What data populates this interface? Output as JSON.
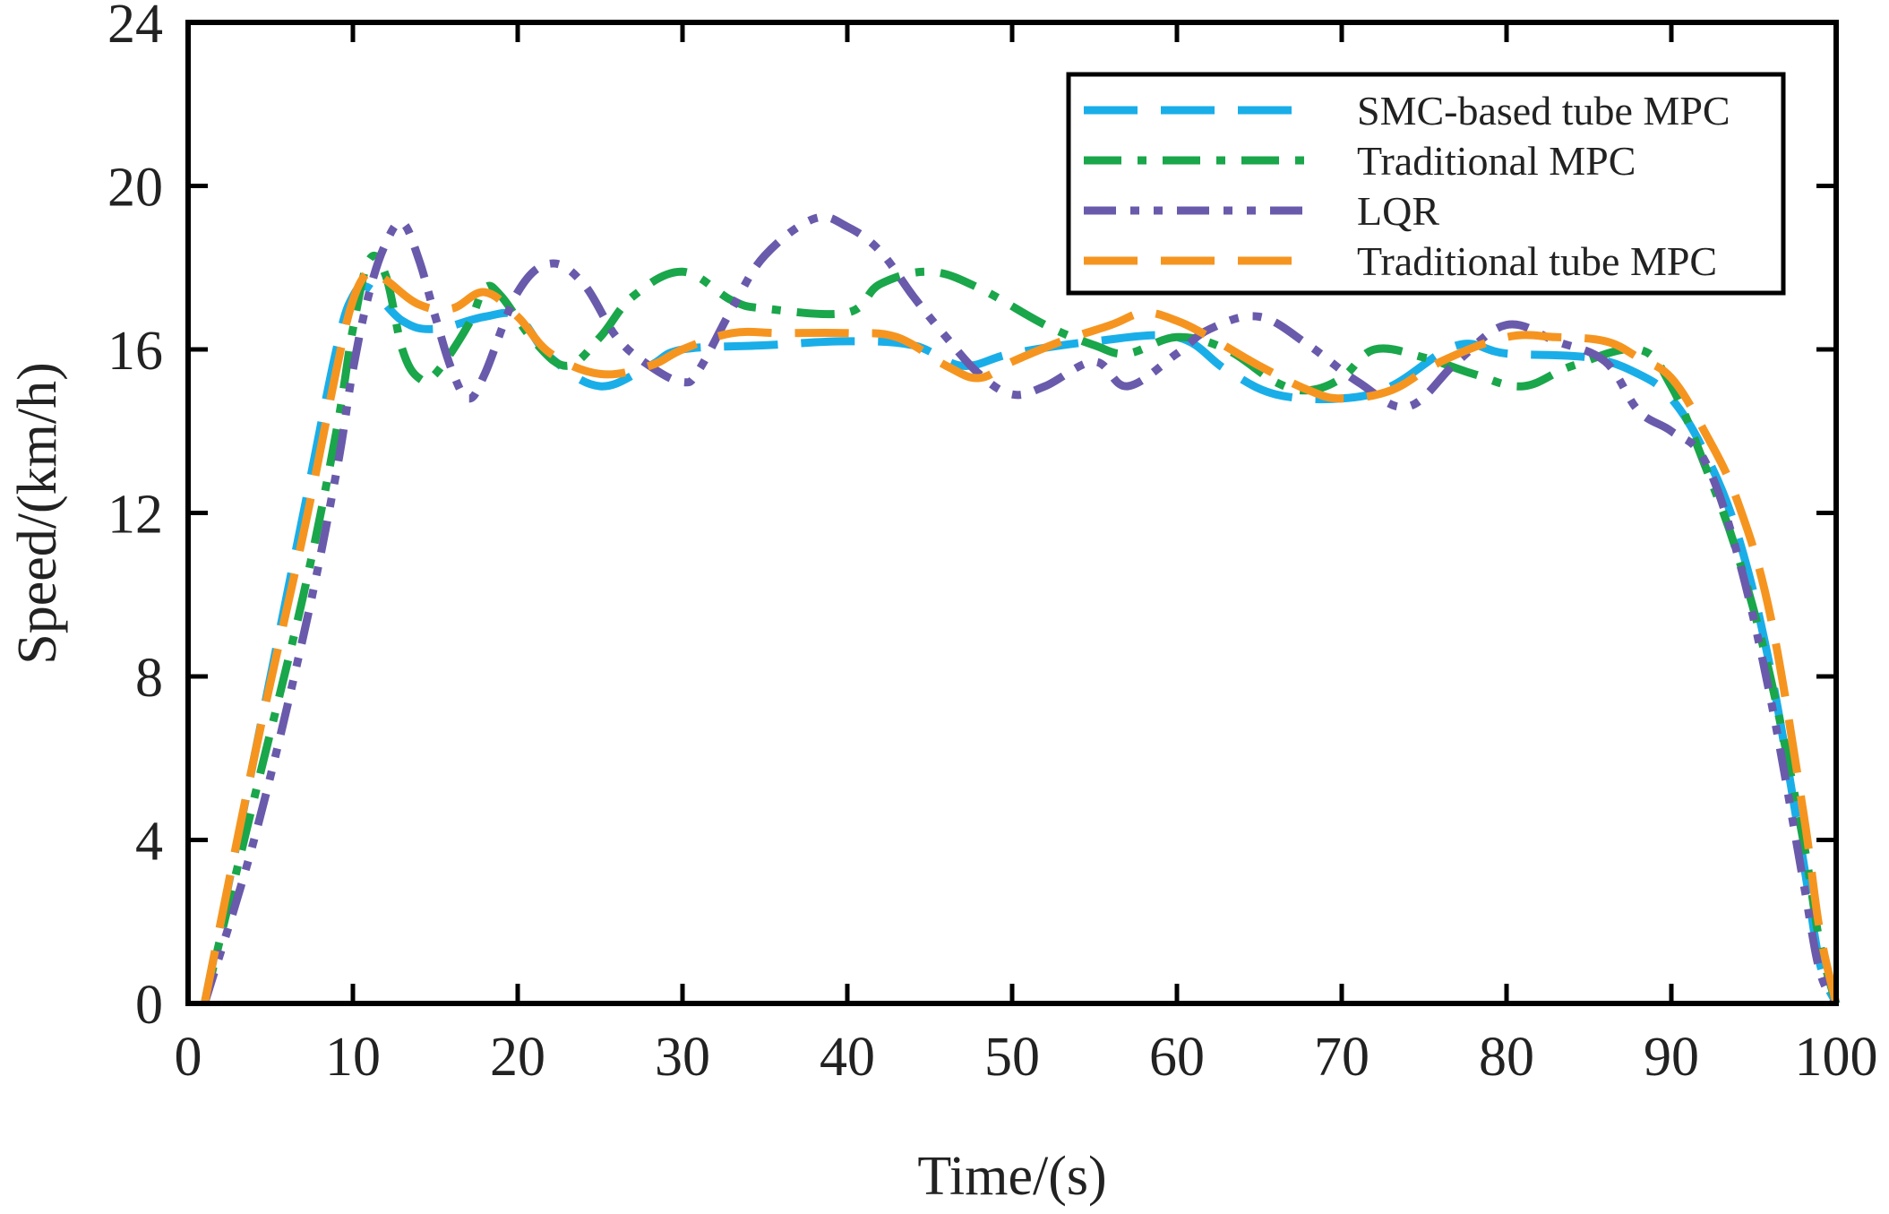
{
  "chart_data": {
    "type": "line",
    "xlabel": "Time/(s)",
    "ylabel": "Speed/(km/h)",
    "xlim": [
      0,
      100
    ],
    "ylim": [
      0,
      24
    ],
    "xticks": [
      0,
      10,
      20,
      30,
      40,
      50,
      60,
      70,
      80,
      90,
      100
    ],
    "yticks": [
      0,
      4,
      8,
      12,
      16,
      20,
      24
    ],
    "grid": false,
    "legend_position": "top-right",
    "series": [
      {
        "name": "SMC-based tube MPC",
        "color": "#1aaee8",
        "dash": "long-dash",
        "x": [
          1,
          4,
          7,
          9,
          10,
          11,
          13,
          15,
          18,
          20,
          22,
          25,
          28,
          30,
          35,
          40,
          44,
          47,
          50,
          55,
          60,
          63,
          66,
          70,
          73,
          77,
          80,
          85,
          88,
          90,
          92,
          94,
          96,
          98,
          99,
          100
        ],
        "y": [
          0,
          6,
          12,
          16,
          17.3,
          17.5,
          16.7,
          16.5,
          16.8,
          16.8,
          15.8,
          15.1,
          15.6,
          16.0,
          16.1,
          16.2,
          16.1,
          15.6,
          15.9,
          16.2,
          16.3,
          15.5,
          14.9,
          14.8,
          15.1,
          16.1,
          15.9,
          15.8,
          15.4,
          14.8,
          13.5,
          11.5,
          8.2,
          3.5,
          1.0,
          0
        ]
      },
      {
        "name": "Traditional MPC",
        "color": "#1aa64a",
        "dash": "dash-dot",
        "x": [
          1,
          4,
          7,
          9,
          10,
          11,
          12,
          13,
          14,
          15,
          17,
          18,
          19,
          21,
          23,
          25,
          27,
          30,
          33,
          35,
          40,
          42,
          45,
          48,
          52,
          55,
          57,
          60,
          63,
          66,
          68,
          70,
          72,
          75,
          78,
          81,
          84,
          88,
          90,
          92,
          94,
          96,
          98,
          99,
          100
        ],
        "y": [
          0,
          5,
          10,
          14,
          16.5,
          18.2,
          17.8,
          16.0,
          15.3,
          15.4,
          16.6,
          17.5,
          17.3,
          16.2,
          15.6,
          16.3,
          17.3,
          17.9,
          17.2,
          17.0,
          16.9,
          17.6,
          17.9,
          17.5,
          16.6,
          16.1,
          15.9,
          16.3,
          16.0,
          15.2,
          15.0,
          15.3,
          16.0,
          15.8,
          15.4,
          15.1,
          15.6,
          16.0,
          15.1,
          13.2,
          11.0,
          8.0,
          4.0,
          1.5,
          0
        ]
      },
      {
        "name": "LQR",
        "color": "#6a5aab",
        "dash": "dash-dot-dot",
        "x": [
          1,
          4,
          7,
          9,
          10,
          11,
          12,
          13,
          14,
          15,
          16,
          17,
          18,
          20,
          22,
          24,
          26,
          28,
          30,
          31,
          33,
          35,
          38,
          40,
          42,
          44,
          46,
          48,
          50,
          52,
          55,
          57,
          60,
          62,
          65,
          68,
          71,
          74,
          77,
          80,
          83,
          86,
          88,
          90,
          92,
          94,
          96,
          98,
          99,
          100
        ],
        "y": [
          0,
          4,
          9,
          13,
          15.5,
          17.4,
          18.6,
          19.1,
          18.2,
          16.8,
          15.5,
          14.8,
          15.4,
          17.4,
          18.1,
          17.6,
          16.3,
          15.6,
          15.2,
          15.5,
          17.0,
          18.3,
          19.2,
          19.0,
          18.4,
          17.3,
          16.3,
          15.4,
          14.9,
          15.1,
          15.7,
          15.1,
          15.9,
          16.5,
          16.8,
          16.1,
          15.2,
          14.6,
          15.7,
          16.6,
          16.2,
          15.7,
          14.5,
          14.0,
          13.3,
          11.0,
          7.5,
          3.0,
          0.8,
          0
        ]
      },
      {
        "name": "Traditional tube MPC",
        "color": "#f59520",
        "dash": "long-dash",
        "x": [
          1,
          4,
          7,
          9,
          10,
          11,
          12,
          14,
          16,
          18,
          20,
          22,
          25,
          28,
          30,
          33,
          36,
          40,
          43,
          46,
          48,
          50,
          53,
          56,
          58,
          60,
          62,
          65,
          68,
          70,
          73,
          76,
          80,
          83,
          86,
          88,
          90,
          92,
          94,
          96,
          98,
          99,
          100
        ],
        "y": [
          0,
          6,
          11.5,
          15.5,
          17.2,
          17.9,
          17.7,
          17.1,
          17.0,
          17.4,
          16.8,
          15.9,
          15.4,
          15.6,
          16.0,
          16.4,
          16.4,
          16.4,
          16.3,
          15.6,
          15.3,
          15.7,
          16.2,
          16.6,
          16.9,
          16.7,
          16.3,
          15.6,
          15.0,
          14.8,
          15.0,
          15.7,
          16.3,
          16.3,
          16.2,
          15.8,
          15.3,
          14.0,
          12.3,
          9.5,
          4.7,
          1.8,
          0
        ]
      }
    ]
  }
}
